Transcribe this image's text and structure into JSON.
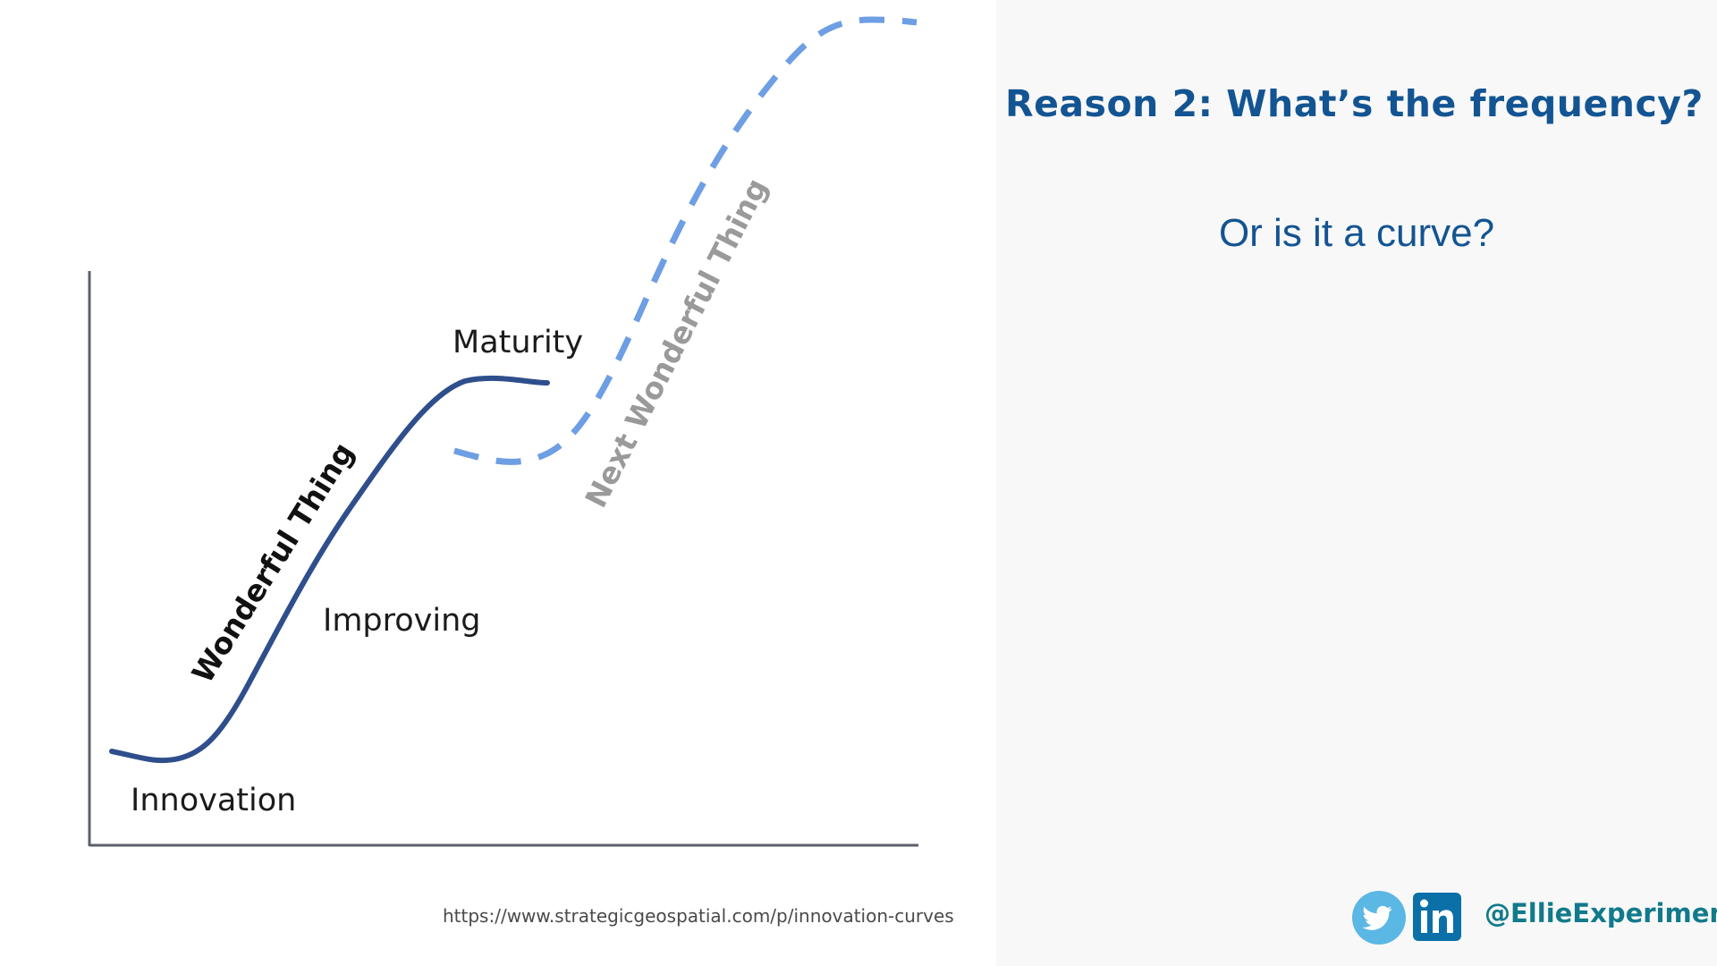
{
  "diagram": {
    "labels": {
      "innovation": "Innovation",
      "improving": "Improving",
      "maturity": "Maturity",
      "curve_current": "Wonderful Thing",
      "curve_next": "Next Wonderful Thing"
    },
    "colors": {
      "axis": "#5a5f6b",
      "current_curve": "#2f4e8c",
      "next_curve": "#6e9ee3",
      "next_label": "#9a9a9a"
    }
  },
  "source": {
    "url_text": "https://www.strategicgeospatial.com/p/innovation-curves"
  },
  "slide": {
    "title": "Reason 2: What’s the frequency?",
    "subtitle": "Or is it a curve?"
  },
  "social": {
    "icons": [
      "twitter-icon",
      "linkedin-icon"
    ],
    "handle": "@EllieExperiment",
    "colors": {
      "twitter": "#5bb7e3",
      "linkedin": "#0b6fa8",
      "handle": "#117a8b"
    }
  }
}
